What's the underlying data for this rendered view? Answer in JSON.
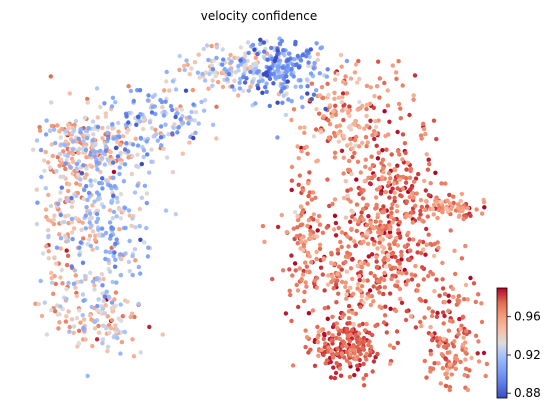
{
  "chart_data": {
    "type": "scatter",
    "title": "velocity confidence",
    "xlabel": "",
    "ylabel": "",
    "grid": false,
    "axes_visible": false,
    "colormap": "coolwarm",
    "colorbar": {
      "position": "right",
      "min": 0.875,
      "max": 0.99,
      "ticks": [
        0.88,
        0.92,
        0.96
      ],
      "tick_labels": [
        "0.88",
        "0.92",
        "0.96"
      ],
      "low_color": "#3b4cc0",
      "mid_color": "#dddddd",
      "high_color": "#b40426"
    },
    "point_groups": [
      {
        "region": "upper-left lobe",
        "cx": 2.0,
        "cy": 6.9,
        "sx": 0.9,
        "sy": 0.4,
        "n": 180,
        "mean": 0.945,
        "sd": 0.02
      },
      {
        "region": "left lobe core",
        "cx": 2.6,
        "cy": 5.2,
        "sx": 0.7,
        "sy": 1.4,
        "n": 260,
        "mean": 0.918,
        "sd": 0.018
      },
      {
        "region": "left lobe edge",
        "cx": 1.3,
        "cy": 4.5,
        "sx": 0.45,
        "sy": 1.8,
        "n": 170,
        "mean": 0.948,
        "sd": 0.016
      },
      {
        "region": "bottom-left tail",
        "cx": 2.5,
        "cy": 2.1,
        "sx": 0.7,
        "sy": 0.55,
        "n": 110,
        "mean": 0.945,
        "sd": 0.02
      },
      {
        "region": "left arm",
        "cx": 4.4,
        "cy": 7.8,
        "sx": 0.9,
        "sy": 0.5,
        "n": 130,
        "mean": 0.915,
        "sd": 0.02
      },
      {
        "region": "top arc",
        "cx": 7.1,
        "cy": 9.2,
        "sx": 1.2,
        "sy": 0.35,
        "n": 180,
        "mean": 0.93,
        "sd": 0.018
      },
      {
        "region": "top blue patch",
        "cx": 8.6,
        "cy": 9.2,
        "sx": 0.7,
        "sy": 0.5,
        "n": 160,
        "mean": 0.9,
        "sd": 0.015
      },
      {
        "region": "right shoulder",
        "cx": 10.6,
        "cy": 7.6,
        "sx": 0.7,
        "sy": 0.8,
        "n": 170,
        "mean": 0.962,
        "sd": 0.012
      },
      {
        "region": "right column",
        "cx": 12.4,
        "cy": 5.0,
        "sx": 0.8,
        "sy": 1.5,
        "n": 330,
        "mean": 0.975,
        "sd": 0.01
      },
      {
        "region": "central mass",
        "cx": 10.8,
        "cy": 3.6,
        "sx": 1.1,
        "sy": 1.1,
        "n": 280,
        "mean": 0.97,
        "sd": 0.012
      },
      {
        "region": "bottom cluster",
        "cx": 10.6,
        "cy": 1.2,
        "sx": 0.6,
        "sy": 0.4,
        "n": 200,
        "mean": 0.978,
        "sd": 0.008
      },
      {
        "region": "right arm",
        "cx": 14.2,
        "cy": 5.2,
        "sx": 0.6,
        "sy": 0.15,
        "n": 70,
        "mean": 0.97,
        "sd": 0.012
      },
      {
        "region": "bottom-right tail",
        "cx": 14.3,
        "cy": 1.4,
        "sx": 0.5,
        "sy": 0.9,
        "n": 150,
        "mean": 0.972,
        "sd": 0.01
      },
      {
        "region": "mid stripe",
        "cx": 9.2,
        "cy": 4.5,
        "sx": 0.25,
        "sy": 1.0,
        "n": 60,
        "mean": 0.97,
        "sd": 0.012
      }
    ]
  }
}
